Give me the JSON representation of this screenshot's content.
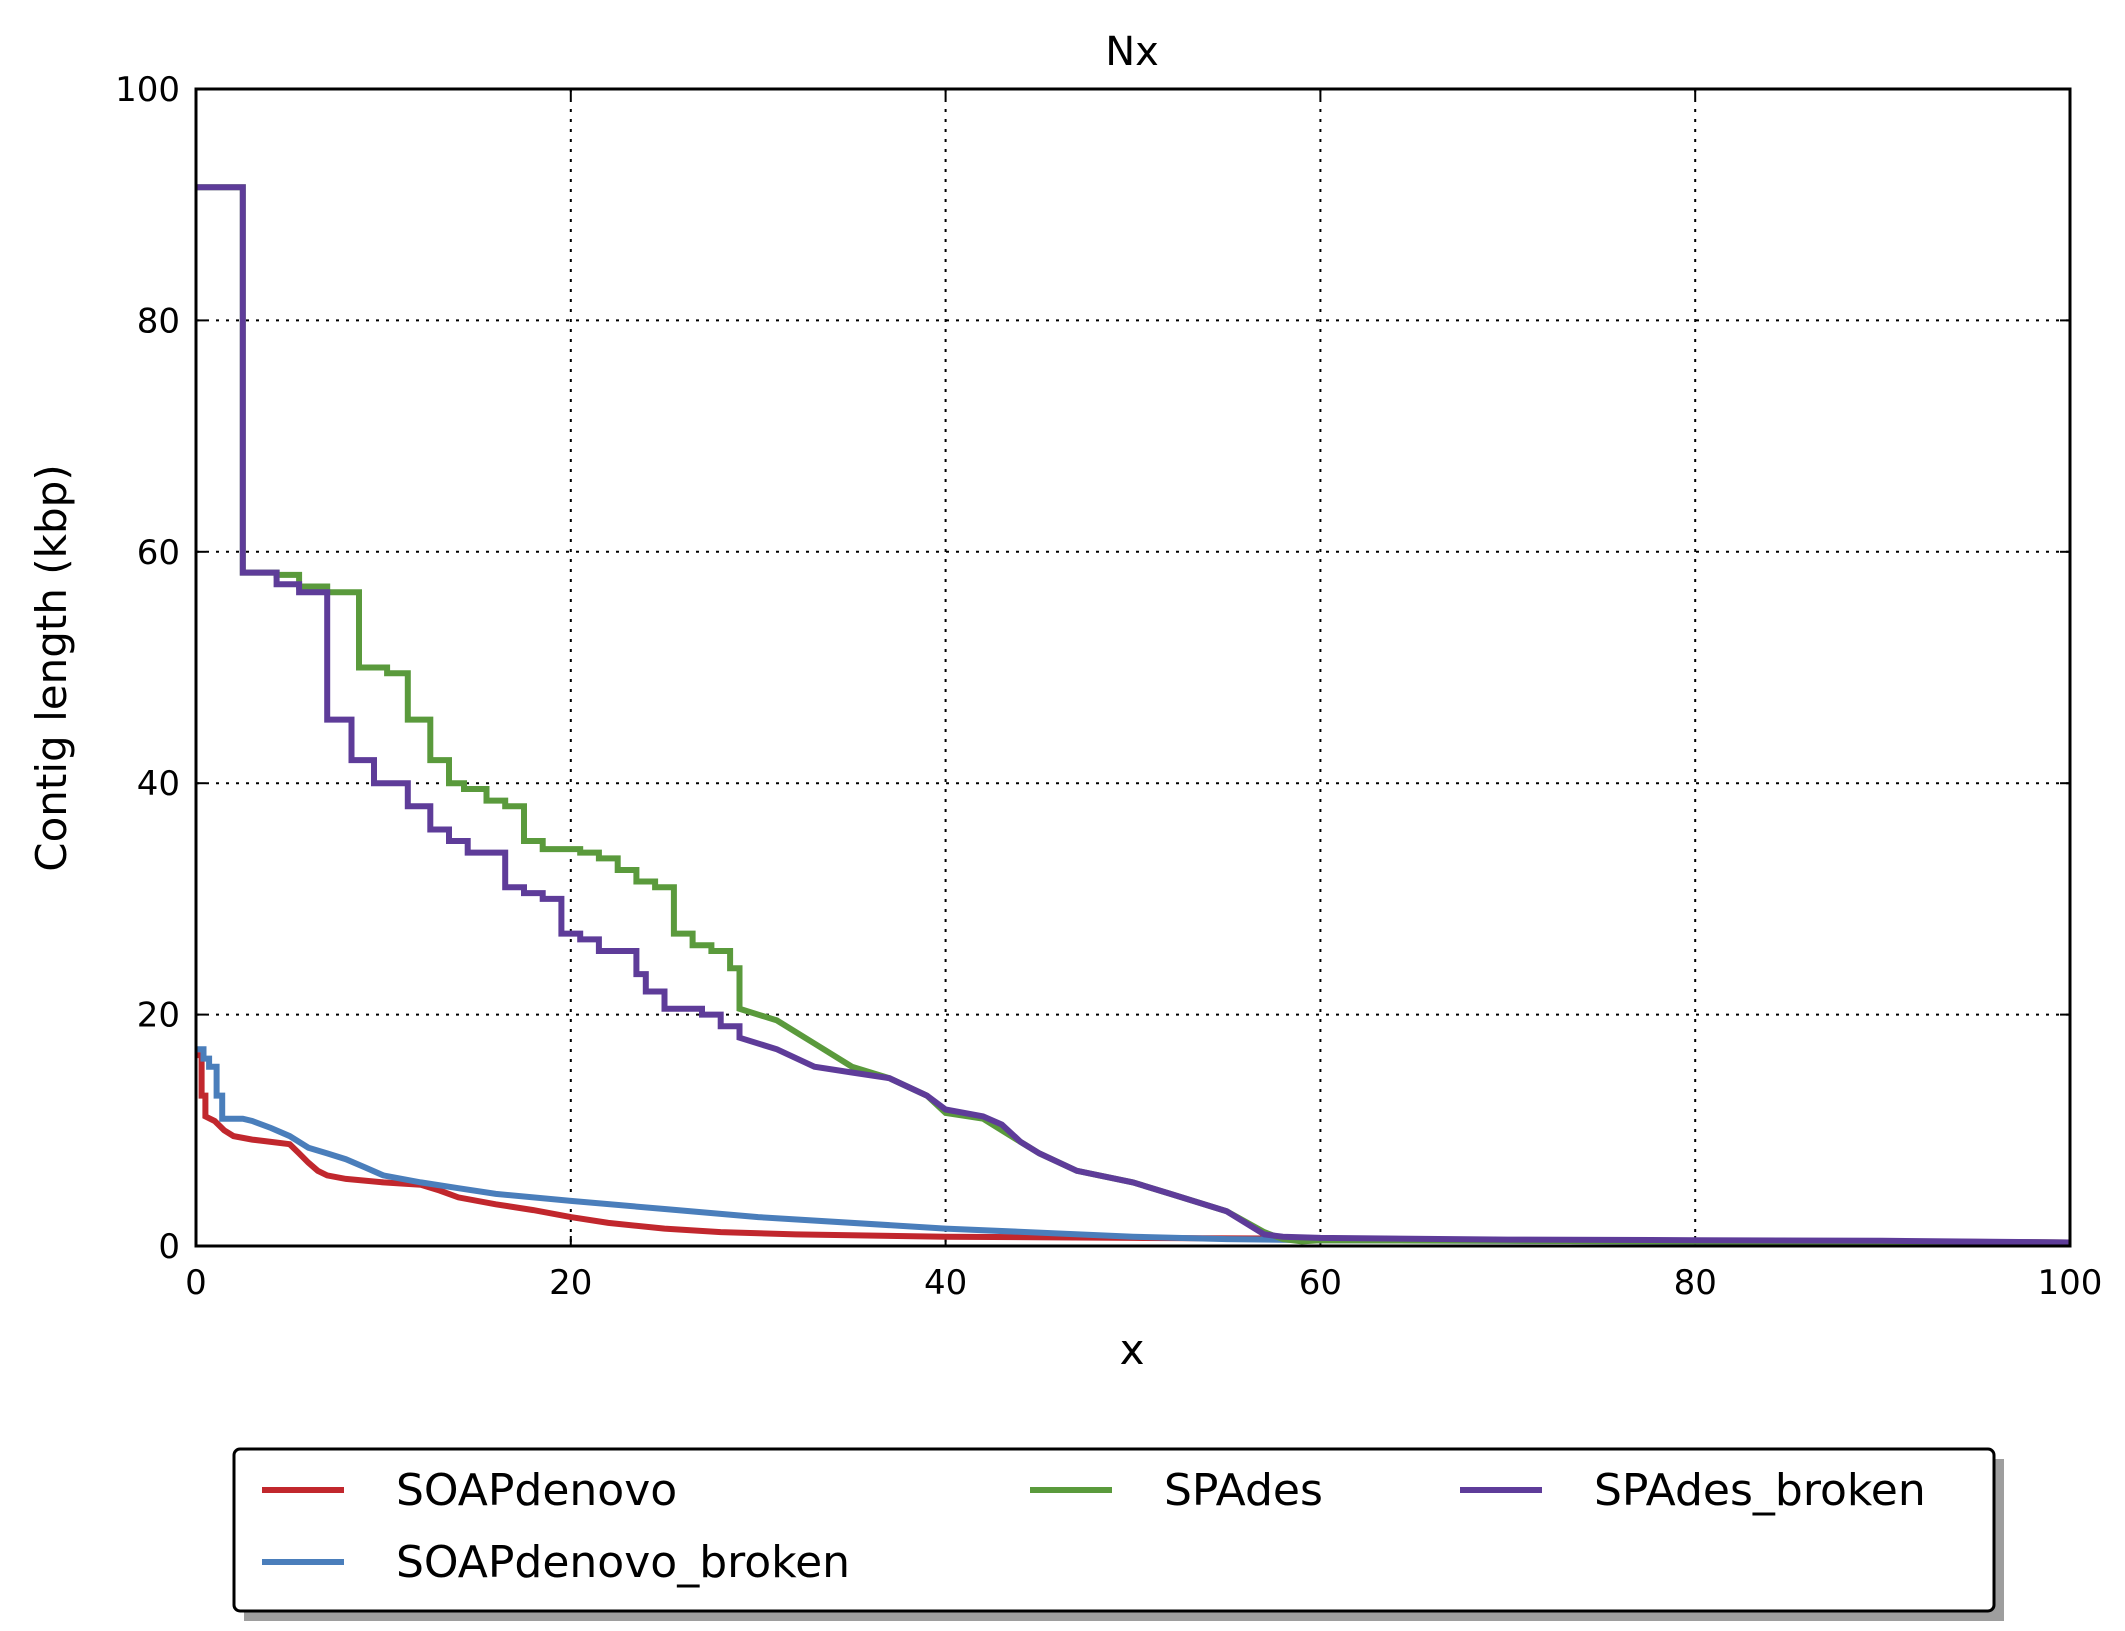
{
  "chart_data": {
    "type": "line",
    "title": "Nx",
    "xlabel": "x",
    "ylabel": "Contig length (kbp)",
    "xlim": [
      0,
      100
    ],
    "ylim": [
      0,
      100
    ],
    "xticks": [
      "0",
      "20",
      "40",
      "60",
      "80",
      "100"
    ],
    "yticks": [
      "0",
      "20",
      "40",
      "60",
      "80",
      "100"
    ],
    "grid": true,
    "legend_position": "bottom",
    "series": [
      {
        "name": "SOAPdenovo",
        "color": "#c1272d",
        "x": [
          0,
          0.3,
          0.3,
          0.5,
          0.5,
          1.0,
          1.5,
          2.0,
          3.0,
          4.0,
          5.0,
          5.5,
          6.0,
          6.5,
          7.0,
          8.0,
          10.0,
          12.0,
          13.0,
          14.0,
          16.0,
          18.0,
          20.0,
          22.0,
          25.0,
          28.0,
          32.0,
          40.0,
          50.0,
          58.0,
          60.0,
          70.0,
          80.0,
          90.0,
          100.0
        ],
        "y": [
          16.5,
          16.5,
          13.0,
          13.0,
          11.2,
          10.8,
          10.0,
          9.5,
          9.2,
          9.0,
          8.8,
          8.0,
          7.2,
          6.5,
          6.1,
          5.8,
          5.5,
          5.3,
          4.8,
          4.2,
          3.6,
          3.1,
          2.5,
          2.0,
          1.5,
          1.2,
          1.0,
          0.8,
          0.7,
          0.65,
          0.6,
          0.5,
          0.45,
          0.4,
          0.3
        ]
      },
      {
        "name": "SOAPdenovo_broken",
        "color": "#4a7ebb",
        "x": [
          0,
          0.4,
          0.4,
          0.7,
          0.7,
          1.1,
          1.1,
          1.4,
          1.4,
          2.5,
          3.0,
          4.0,
          5.0,
          6.0,
          7.0,
          8.0,
          9.0,
          10.0,
          12.0,
          14.0,
          16.0,
          20.0,
          25.0,
          30.0,
          40.0,
          50.0,
          55.0,
          60.0,
          70.0,
          80.0,
          90.0,
          100.0
        ],
        "y": [
          17.0,
          17.0,
          16.2,
          16.2,
          15.5,
          15.5,
          13.0,
          13.0,
          11.0,
          11.0,
          10.8,
          10.2,
          9.5,
          8.5,
          8.0,
          7.5,
          6.8,
          6.1,
          5.5,
          5.0,
          4.5,
          3.9,
          3.2,
          2.5,
          1.5,
          0.8,
          0.6,
          0.5,
          0.45,
          0.4,
          0.35,
          0.3
        ]
      },
      {
        "name": "SPAdes",
        "color": "#5a9a3c",
        "x": [
          0,
          2.5,
          2.5,
          4.3,
          4.3,
          5.5,
          5.5,
          7.0,
          7.0,
          8.7,
          8.7,
          10.2,
          10.2,
          11.3,
          11.3,
          12.5,
          12.5,
          13.5,
          13.5,
          14.3,
          14.3,
          15.5,
          15.5,
          16.5,
          16.5,
          17.5,
          17.5,
          18.5,
          18.5,
          20.5,
          20.5,
          21.5,
          21.5,
          22.5,
          22.5,
          23.5,
          23.5,
          24.5,
          24.5,
          25.5,
          25.5,
          26.5,
          26.5,
          27.5,
          27.5,
          28.5,
          28.5,
          29.0,
          29.0,
          31.0,
          33.0,
          35.0,
          37.0,
          39.0,
          40.0,
          42.0,
          43.0,
          44.0,
          45.0,
          47.0,
          50.0,
          52.0,
          55.0,
          57.0,
          58.0,
          59.0,
          60.0,
          70.0,
          80.0,
          90.0,
          100.0
        ],
        "y": [
          91.5,
          91.5,
          58.2,
          58.2,
          58.0,
          58.0,
          57.0,
          57.0,
          56.5,
          56.5,
          50.0,
          50.0,
          49.5,
          49.5,
          45.5,
          45.5,
          42.0,
          42.0,
          40.0,
          40.0,
          39.5,
          39.5,
          38.5,
          38.5,
          38.0,
          38.0,
          35.0,
          35.0,
          34.3,
          34.3,
          34.0,
          34.0,
          33.5,
          33.5,
          32.5,
          32.5,
          31.5,
          31.5,
          31.0,
          31.0,
          27.0,
          27.0,
          26.0,
          26.0,
          25.5,
          25.5,
          24.0,
          24.0,
          20.5,
          19.5,
          17.5,
          15.5,
          14.5,
          13.0,
          11.5,
          11.0,
          10.0,
          9.0,
          8.0,
          6.5,
          5.5,
          4.5,
          3.0,
          1.2,
          0.6,
          0.4,
          0.5,
          0.45,
          0.4,
          0.35,
          0.3
        ]
      },
      {
        "name": "SPAdes_broken",
        "color": "#5e3c99",
        "x": [
          0,
          2.5,
          2.5,
          4.3,
          4.3,
          5.5,
          5.5,
          7.0,
          7.0,
          8.3,
          8.3,
          9.5,
          9.5,
          11.3,
          11.3,
          12.5,
          12.5,
          13.5,
          13.5,
          14.5,
          14.5,
          16.5,
          16.5,
          17.5,
          17.5,
          18.5,
          18.5,
          19.5,
          19.5,
          20.5,
          20.5,
          21.5,
          21.5,
          23.5,
          23.5,
          24.0,
          24.0,
          25.0,
          25.0,
          27.0,
          27.0,
          28.0,
          28.0,
          29.0,
          29.0,
          31.0,
          33.0,
          35.0,
          37.0,
          39.0,
          40.0,
          42.0,
          43.0,
          44.0,
          45.0,
          47.0,
          50.0,
          52.0,
          55.0,
          57.0,
          58.0,
          60.0,
          70.0,
          80.0,
          90.0,
          100.0
        ],
        "y": [
          91.5,
          91.5,
          58.2,
          58.2,
          57.2,
          57.2,
          56.5,
          56.5,
          45.5,
          45.5,
          42.0,
          42.0,
          40.0,
          40.0,
          38.0,
          38.0,
          36.0,
          36.0,
          35.0,
          35.0,
          34.0,
          34.0,
          31.0,
          31.0,
          30.5,
          30.5,
          30.0,
          30.0,
          27.0,
          27.0,
          26.5,
          26.5,
          25.5,
          25.5,
          23.5,
          23.5,
          22.0,
          22.0,
          20.5,
          20.5,
          20.0,
          20.0,
          19.0,
          19.0,
          18.0,
          17.0,
          15.5,
          15.0,
          14.5,
          13.0,
          11.8,
          11.2,
          10.5,
          9.0,
          8.0,
          6.5,
          5.5,
          4.5,
          3.0,
          1.0,
          0.8,
          0.7,
          0.55,
          0.5,
          0.45,
          0.3
        ]
      }
    ]
  },
  "legend": {
    "entries": [
      "SOAPdenovo",
      "SOAPdenovo_broken",
      "SPAdes",
      "SPAdes_broken"
    ]
  }
}
